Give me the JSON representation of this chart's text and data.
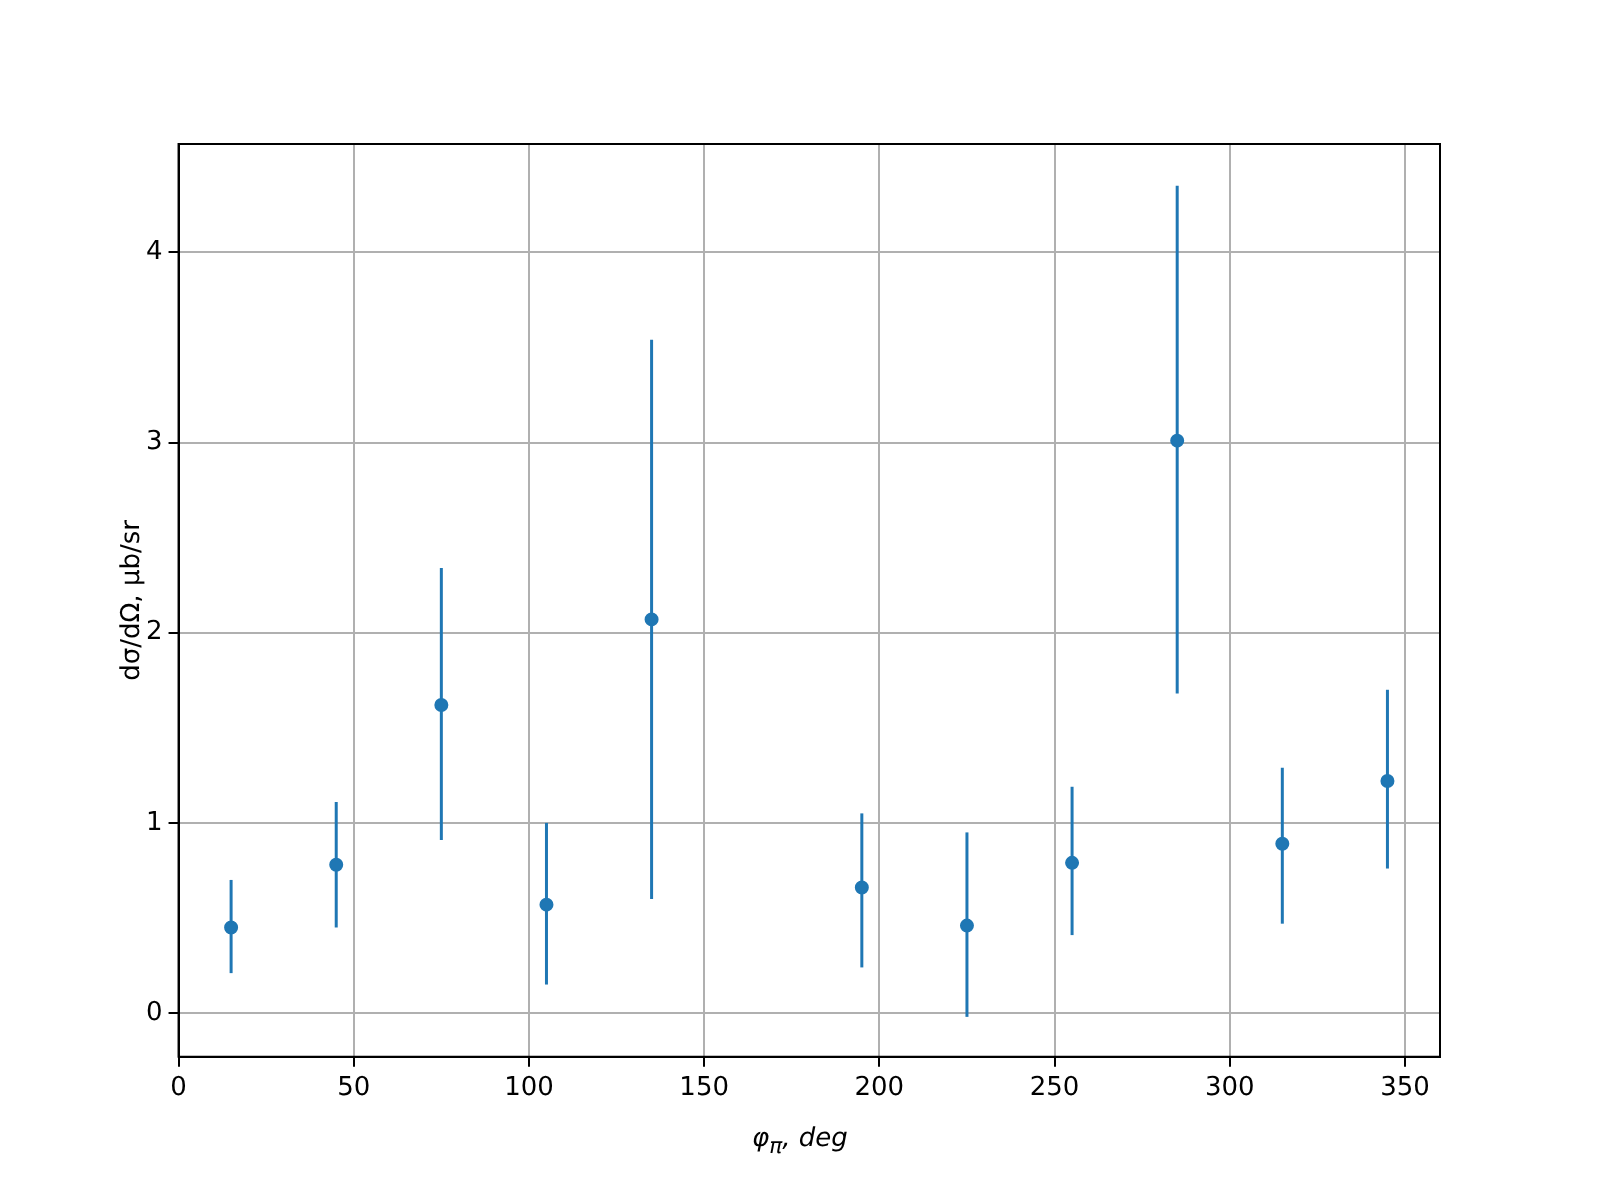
{
  "chart_data": {
    "type": "scatter",
    "xlabel": "φ$_{π}$, deg",
    "ylabel": "dσ/dΩ, μb/sr",
    "x": [
      15,
      45,
      75,
      105,
      135,
      195,
      225,
      255,
      285,
      315,
      345
    ],
    "series": [
      {
        "color": "#1f77b4",
        "values": [
          0.45,
          0.78,
          1.62,
          0.57,
          2.07,
          0.66,
          0.46,
          0.79,
          3.01,
          0.89,
          1.22
        ],
        "errors": [
          [
            0.21,
            0.7
          ],
          [
            0.45,
            1.11
          ],
          [
            0.91,
            2.34
          ],
          [
            0.15,
            1.0
          ],
          [
            0.6,
            3.54
          ],
          [
            0.24,
            1.05
          ],
          [
            -0.02,
            0.95
          ],
          [
            0.41,
            1.19
          ],
          [
            1.68,
            4.35
          ],
          [
            0.47,
            1.29
          ],
          [
            0.76,
            1.7
          ]
        ]
      }
    ],
    "xlim": [
      0,
      360
    ],
    "xticks": [
      0,
      50,
      100,
      150,
      200,
      250,
      300,
      350
    ],
    "ylim": [
      -0.23,
      4.57
    ],
    "yticks": [
      0,
      1,
      2,
      3,
      4
    ],
    "grid": true,
    "marker": "circle",
    "legend": false
  }
}
